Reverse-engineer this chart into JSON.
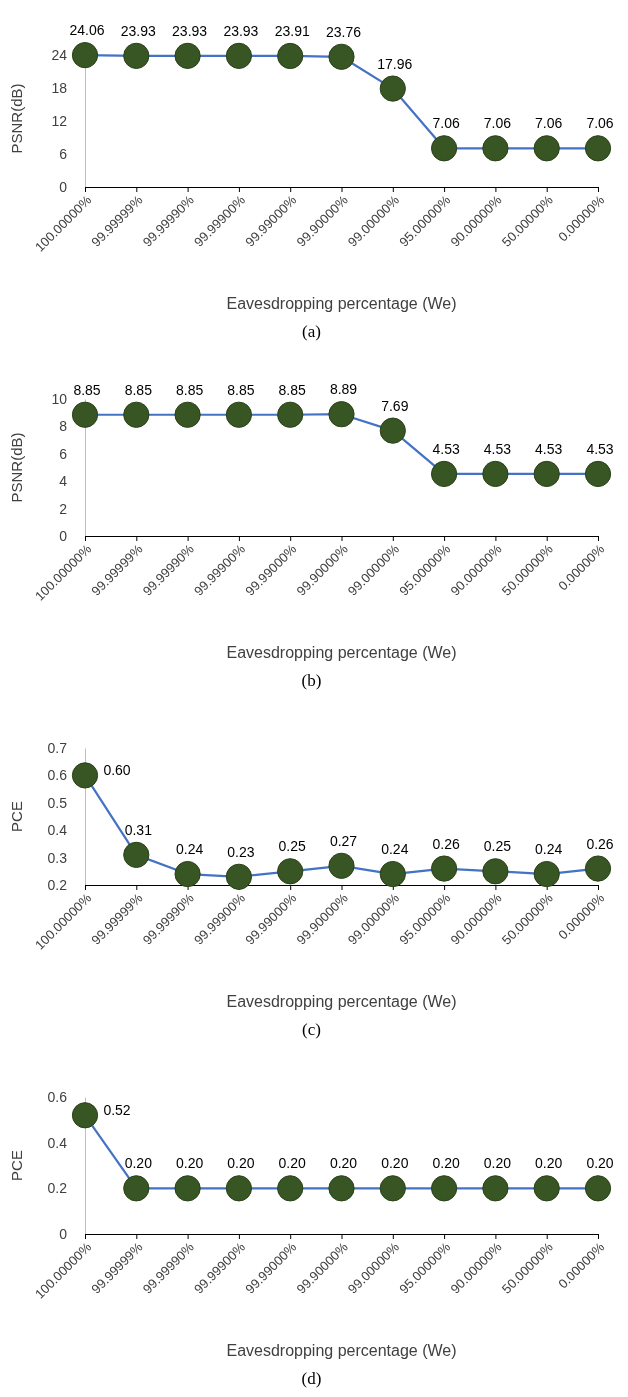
{
  "chart_data": [
    {
      "type": "line",
      "categories": [
        "100.00000%",
        "99.99999%",
        "99.99990%",
        "99.99900%",
        "99.99000%",
        "99.90000%",
        "99.00000%",
        "95.00000%",
        "90.00000%",
        "50.00000%",
        "0.00000%"
      ],
      "xlabel": "Eavesdropping percentage (We)",
      "ylabel": "PSNR(dB)",
      "ylim": [
        0,
        25
      ],
      "yticks": [
        0,
        6,
        12,
        18,
        24
      ],
      "marker": "circle",
      "grid": false,
      "annotations": [
        "(a)"
      ],
      "series": [
        {
          "color": "#4472c4",
          "values": [
            24.06,
            23.93,
            23.93,
            23.93,
            23.91,
            23.76,
            17.96,
            7.06,
            7.06,
            7.06,
            7.06
          ],
          "value_labels": [
            "24.06",
            "23.93",
            "23.93",
            "23.93",
            "23.91",
            "23.76",
            "17.96",
            "7.06",
            "7.06",
            "7.06",
            "7.06"
          ]
        }
      ]
    },
    {
      "type": "line",
      "categories": [
        "100.00000%",
        "99.99999%",
        "99.99990%",
        "99.99900%",
        "99.99000%",
        "99.90000%",
        "99.00000%",
        "95.00000%",
        "90.00000%",
        "50.00000%",
        "0.00000%"
      ],
      "xlabel": "Eavesdropping percentage (We)",
      "ylabel": "PSNR(dB)",
      "ylim": [
        0,
        10
      ],
      "yticks": [
        0,
        2,
        4,
        6,
        8,
        10
      ],
      "marker": "circle",
      "grid": false,
      "annotations": [
        "(b)"
      ],
      "series": [
        {
          "color": "#4472c4",
          "values": [
            8.85,
            8.85,
            8.85,
            8.85,
            8.85,
            8.89,
            7.69,
            4.53,
            4.53,
            4.53,
            4.53
          ],
          "value_labels": [
            "8.85",
            "8.85",
            "8.85",
            "8.85",
            "8.85",
            "8.89",
            "7.69",
            "4.53",
            "4.53",
            "4.53",
            "4.53"
          ]
        }
      ]
    },
    {
      "type": "line",
      "categories": [
        "100.00000%",
        "99.99999%",
        "99.99990%",
        "99.99900%",
        "99.99000%",
        "99.90000%",
        "99.00000%",
        "95.00000%",
        "90.00000%",
        "50.00000%",
        "0.00000%"
      ],
      "xlabel": "Eavesdropping percentage (We)",
      "ylabel": "PCE",
      "ylim": [
        0.2,
        0.7
      ],
      "yticks": [
        {
          "value": 0.2,
          "label": "0.2"
        },
        {
          "value": 0.3,
          "label": "0.3"
        },
        {
          "value": 0.4,
          "label": "0.4"
        },
        {
          "value": 0.5,
          "label": "0.5"
        },
        {
          "value": 0.6,
          "label": "0.6"
        },
        {
          "value": 0.7,
          "label": "0.7"
        }
      ],
      "marker": "circle",
      "grid": false,
      "annotations": [
        "(c)"
      ],
      "series": [
        {
          "color": "#4472c4",
          "values": [
            0.6,
            0.31,
            0.24,
            0.23,
            0.25,
            0.27,
            0.24,
            0.26,
            0.25,
            0.24,
            0.26
          ],
          "value_labels": [
            "0.60",
            "0.31",
            "0.24",
            "0.23",
            "0.25",
            "0.27",
            "0.24",
            "0.26",
            "0.25",
            "0.24",
            "0.26"
          ]
        }
      ]
    },
    {
      "type": "line",
      "categories": [
        "100.00000%",
        "99.99999%",
        "99.99990%",
        "99.99900%",
        "99.99000%",
        "99.90000%",
        "99.00000%",
        "95.00000%",
        "90.00000%",
        "50.00000%",
        "0.00000%"
      ],
      "xlabel": "Eavesdropping percentage (We)",
      "ylabel": "PCE",
      "ylim": [
        0,
        0.6
      ],
      "yticks": [
        0,
        {
          "value": 0.2,
          "label": "0.2"
        },
        {
          "value": 0.4,
          "label": "0.4"
        },
        {
          "value": 0.6,
          "label": "0.6"
        }
      ],
      "marker": "circle",
      "grid": false,
      "annotations": [
        "(d)"
      ],
      "series": [
        {
          "color": "#4472c4",
          "values": [
            0.52,
            0.2,
            0.2,
            0.2,
            0.2,
            0.2,
            0.2,
            0.2,
            0.2,
            0.2,
            0.2
          ],
          "value_labels": [
            "0.52",
            "0.20",
            "0.20",
            "0.20",
            "0.20",
            "0.20",
            "0.20",
            "0.20",
            "0.20",
            "0.20",
            "0.20"
          ]
        }
      ]
    }
  ]
}
